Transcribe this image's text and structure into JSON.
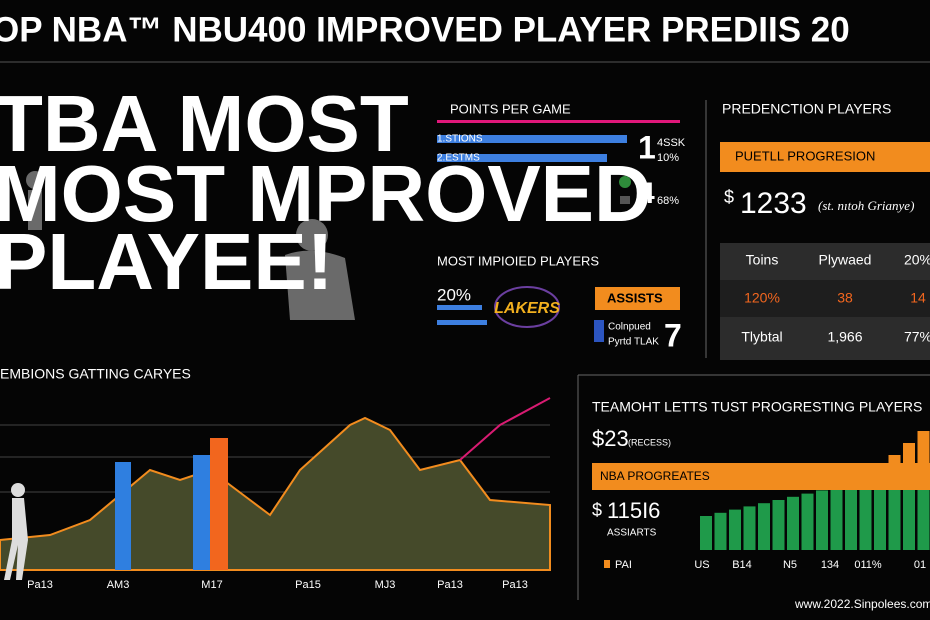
{
  "header": {
    "title": "OP NBA™ NBU400 IMPROVED PLAYER PREDIIS 20"
  },
  "hero": {
    "lines": [
      "TBA MOST",
      "MOST  MPROVED",
      "PLAYEE!"
    ]
  },
  "points_panel": {
    "title": "POINTS PER GAME",
    "rows": [
      "1.STIONS",
      "2.ESTMS"
    ],
    "stats": [
      {
        "big": "1",
        "small": [
          "4SSK",
          "10%"
        ]
      },
      {
        "big": "4",
        "small": [
          "68%"
        ]
      }
    ]
  },
  "improved_panel": {
    "title": "MOST IMPIOIED PLAYERS",
    "percent": "20%",
    "logo": "LAKERS",
    "badge": "ASSISTS",
    "notes": [
      "Colnpued",
      "Pyrtd TLAK"
    ],
    "big": "7"
  },
  "prediction_panel": {
    "title": "PREDENCTION PLAYERS",
    "banner": "PUETLL PROGRESION",
    "currency": "$",
    "amount": "1233",
    "caption": "(st. nıtoh Grianye)",
    "table": {
      "rows": [
        [
          "Toins",
          "Plywaed",
          "20%"
        ],
        [
          "120%",
          "38",
          "14"
        ],
        [
          "Tlybtal",
          "1,966",
          "77%"
        ]
      ]
    }
  },
  "left_chart": {
    "title": "EMBIONS GATTING CARYES",
    "x_labels": [
      "Pa13",
      "AM3",
      "M17",
      "Pa15",
      "MJ3",
      "Pa13",
      "Pa13"
    ]
  },
  "right_chart": {
    "title": "TEAMOHT LETTS TUST PROGRESTING PLAYERS",
    "stat1": "$23",
    "stat1_note": "(RECESS)",
    "banner": "NBA PROGREATES",
    "currency": "$",
    "stat2": "115I6",
    "stat2_note": "ASSIARTS",
    "legend": "PAI",
    "x_labels": [
      "US",
      "B14",
      "N5",
      "134",
      "011%",
      "01"
    ]
  },
  "footer": {
    "url": "www.2022.Sinpolees.com"
  }
}
